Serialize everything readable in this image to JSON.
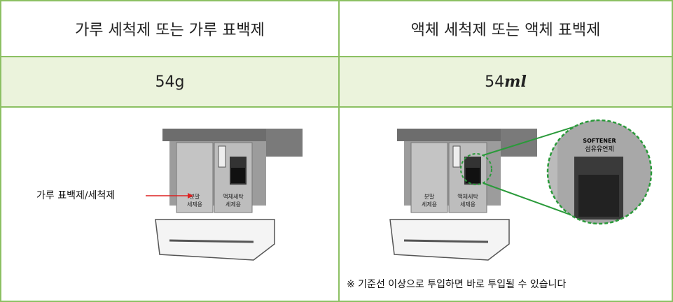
{
  "table": {
    "header": [
      "가루 세척제 또는 가루 표백제",
      "액체 세척제 또는 액체 표백제"
    ],
    "amounts": [
      {
        "number": "54",
        "unit": "g"
      },
      {
        "number": "54",
        "unit": "ml"
      }
    ],
    "left_callout": "가루 표백제/세척제",
    "drawer_labels": {
      "powder": [
        "분말",
        "세제용"
      ],
      "liquid": [
        "액체세탁",
        "세제용"
      ],
      "softener": [
        "SOFTENER",
        "섬유유연제"
      ]
    },
    "note": "※ 기준선 이상으로 투입하면 바로 투입될 수 있습니다"
  }
}
